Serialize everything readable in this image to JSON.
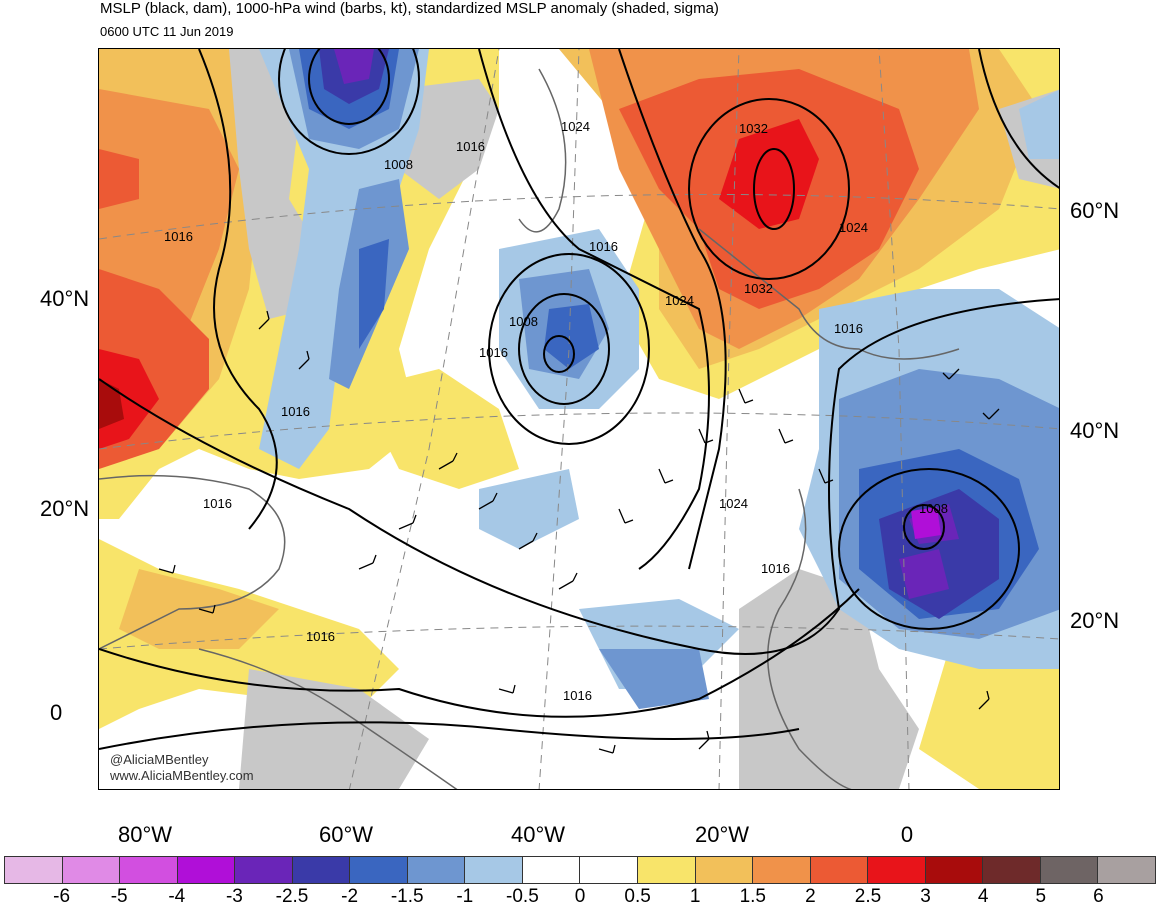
{
  "title": "MSLP (black, dam), 1000-hPa wind (barbs, kt), standardized MSLP anomaly (shaded, sigma)",
  "valid_time": "0600 UTC 11 Jun 2019",
  "credit": {
    "handle": "@AliciaMBentley",
    "site": "www.AliciaMBentley.com"
  },
  "lat_labels_left": [
    "40°N",
    "20°N",
    "0"
  ],
  "lat_labels_right": [
    "60°N",
    "40°N",
    "20°N"
  ],
  "lon_labels": [
    "80°W",
    "60°W",
    "40°W",
    "20°W",
    "0"
  ],
  "contour_labels": [
    "1008",
    "1016",
    "1024",
    "1032",
    "1016",
    "1016",
    "1008",
    "1016",
    "1024",
    "1032",
    "1024",
    "1016",
    "1016",
    "1016",
    "1016",
    "1024",
    "1016",
    "1008",
    "1016"
  ],
  "colorbar": {
    "labels": [
      "-6",
      "-5",
      "-4",
      "-3",
      "-2.5",
      "-2",
      "-1.5",
      "-1",
      "-0.5",
      "0",
      "0.5",
      "1",
      "1.5",
      "2",
      "2.5",
      "3",
      "4",
      "5",
      "6"
    ],
    "colors": [
      "#e6b8e6",
      "#e08ae6",
      "#d24fe0",
      "#b00fd8",
      "#6a25b8",
      "#3a3aa8",
      "#3a66c0",
      "#6e96d0",
      "#a6c8e6",
      "#ffffff",
      "#ffffff",
      "#f8e46a",
      "#f2c05a",
      "#f0924a",
      "#ec5a34",
      "#e8141a",
      "#a80c0c",
      "#6e2a2a",
      "#6e6464",
      "#a8a0a0"
    ]
  },
  "colors": {
    "land_gray": "#c8c8c8",
    "coast": "#666666"
  }
}
